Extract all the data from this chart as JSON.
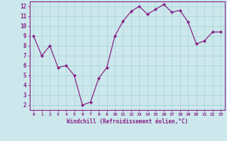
{
  "x": [
    0,
    1,
    2,
    3,
    4,
    5,
    6,
    7,
    8,
    9,
    10,
    11,
    12,
    13,
    14,
    15,
    16,
    17,
    18,
    19,
    20,
    21,
    22,
    23
  ],
  "y": [
    9.0,
    7.0,
    8.0,
    5.8,
    6.0,
    5.0,
    2.0,
    2.3,
    4.7,
    5.8,
    9.0,
    10.5,
    11.5,
    12.0,
    11.2,
    11.7,
    12.2,
    11.4,
    11.6,
    10.4,
    8.2,
    8.5,
    9.4,
    9.4
  ],
  "xlabel": "Windchill (Refroidissement éolien,°C)",
  "ylim": [
    1.5,
    12.5
  ],
  "yticks": [
    2,
    3,
    4,
    5,
    6,
    7,
    8,
    9,
    10,
    11,
    12
  ],
  "xticks": [
    0,
    1,
    2,
    3,
    4,
    5,
    6,
    7,
    8,
    9,
    10,
    11,
    12,
    13,
    14,
    15,
    16,
    17,
    18,
    19,
    20,
    21,
    22,
    23
  ],
  "line_color": "#882288",
  "marker_color": "#882288",
  "bg_color": "#cce8ec",
  "grid_color": "#b0d8dc",
  "axis_label_color": "#882288",
  "tick_label_color": "#882288",
  "spine_color": "#882288",
  "figsize": [
    3.2,
    2.0
  ],
  "dpi": 100
}
